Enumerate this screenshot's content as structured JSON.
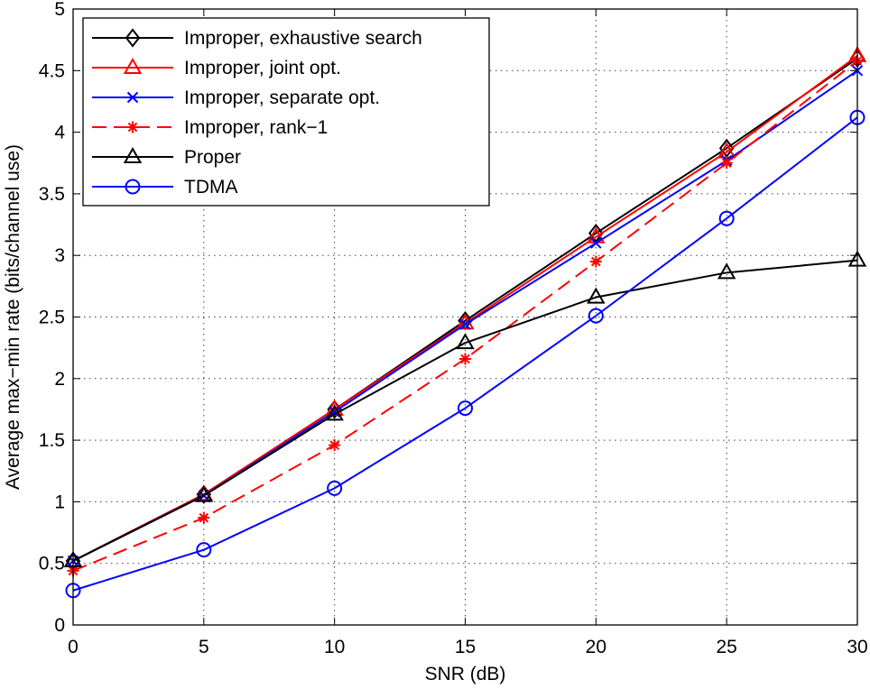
{
  "chart_data": {
    "type": "line",
    "title": "",
    "xlabel": "SNR (dB)",
    "ylabel": "Average max−min rate (bits/channel use)",
    "xlim": [
      0,
      30
    ],
    "ylim": [
      0,
      5
    ],
    "xticks": [
      0,
      5,
      10,
      15,
      20,
      25,
      30
    ],
    "xtick_labels": [
      "0",
      "5",
      "10",
      "15",
      "20",
      "25",
      "30"
    ],
    "yticks": [
      0,
      0.5,
      1,
      1.5,
      2,
      2.5,
      3,
      3.5,
      4,
      4.5,
      5
    ],
    "ytick_labels": [
      "0",
      "0.5",
      "1",
      "1.5",
      "2",
      "2.5",
      "3",
      "3.5",
      "4",
      "4.5",
      "5"
    ],
    "grid": true,
    "legend_position": "top-left",
    "x": [
      0,
      5,
      10,
      15,
      20,
      25,
      30
    ],
    "series": [
      {
        "name": "Improper, exhaustive search",
        "color": "#000000",
        "marker": "diamond",
        "dash": "solid",
        "values": [
          0.52,
          1.06,
          1.75,
          2.47,
          3.18,
          3.87,
          4.6
        ]
      },
      {
        "name": "Improper, joint opt.",
        "color": "#ff0000",
        "marker": "triangle",
        "dash": "solid",
        "values": [
          0.52,
          1.06,
          1.75,
          2.45,
          3.15,
          3.84,
          4.62
        ]
      },
      {
        "name": "Improper, separate opt.",
        "color": "#0000ff",
        "marker": "x",
        "dash": "solid",
        "values": [
          0.52,
          1.05,
          1.73,
          2.44,
          3.1,
          3.77,
          4.5
        ]
      },
      {
        "name": "Improper, rank−1",
        "color": "#ff0000",
        "marker": "asterisk",
        "dash": "dashed",
        "values": [
          0.44,
          0.87,
          1.46,
          2.16,
          2.95,
          3.75,
          4.58
        ]
      },
      {
        "name": "Proper",
        "color": "#000000",
        "marker": "triangle",
        "dash": "solid",
        "values": [
          0.52,
          1.05,
          1.71,
          2.29,
          2.66,
          2.86,
          2.96
        ]
      },
      {
        "name": "TDMA",
        "color": "#0000ff",
        "marker": "circle",
        "dash": "solid",
        "values": [
          0.28,
          0.61,
          1.11,
          1.76,
          2.51,
          3.3,
          4.12
        ]
      }
    ]
  }
}
